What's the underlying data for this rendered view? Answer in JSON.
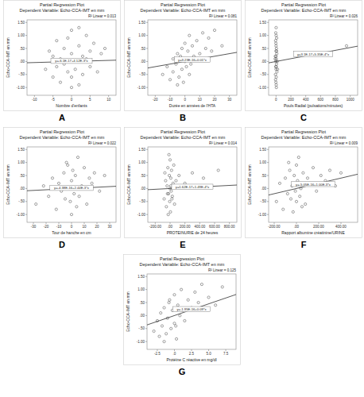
{
  "chart_data": [
    {
      "type": "scatter",
      "panel_label": "A",
      "title": "Partial Regression Plot",
      "subtitle": "Dependent Variable: Echo-CCA-IMT en mm",
      "x_label": "Nombre d'enfants",
      "y_label": "Echo-CCA-IMT en mm",
      "r2_label": "R² Linear = 0.013",
      "equation": "y=-6.1E-17+4.12E-3*x",
      "fit_line": {
        "intercept": 0,
        "slope": 0.00412
      },
      "color": "#444444",
      "marker": "circle-open",
      "grid": false,
      "x": [
        -7,
        -6,
        -5,
        -5,
        -4,
        -4,
        -3,
        -3,
        -2,
        -2,
        -1,
        -1,
        0,
        0,
        0,
        1,
        1,
        2,
        2,
        3,
        3,
        4,
        4,
        5,
        5,
        6,
        7,
        8,
        9,
        -3,
        2,
        0
      ],
      "y": [
        -0.3,
        0.4,
        -0.6,
        0.2,
        0.8,
        -0.2,
        0.1,
        -0.8,
        0.5,
        -0.1,
        0.9,
        -0.4,
        0.3,
        -0.6,
        1.2,
        0.0,
        -0.3,
        0.6,
        -0.9,
        0.2,
        -0.5,
        1.0,
        0.1,
        -0.2,
        0.4,
        0.7,
        -0.4,
        0.3,
        0.5,
        0.0,
        1.3,
        -1.0
      ],
      "xlim": [
        -12,
        12
      ],
      "xticks": [
        -10,
        -5,
        0,
        5,
        10
      ],
      "ylim": [
        -1.3,
        1.6
      ],
      "yticks": [
        {
          "value": -1,
          "label": "-1.00"
        },
        {
          "value": -0.5,
          "label": "-.50"
        },
        {
          "value": 0,
          "label": ".00"
        },
        {
          "value": 0.5,
          "label": ".50"
        },
        {
          "value": 1,
          "label": "1.00"
        },
        {
          "value": 1.5,
          "label": "1.50"
        }
      ]
    },
    {
      "type": "scatter",
      "panel_label": "B",
      "title": "Partial Regression Plot",
      "subtitle": "Dependent Variable: Echo-CCA-IMT en mm",
      "x_label": "Durée en années de l'HTA",
      "y_label": "Echo-CCA-IMT en mm",
      "r2_label": "R² Linear = 0.081",
      "equation": "y=3.23E-16+0.01*x",
      "fit_line": {
        "intercept": 0,
        "slope": 0.01
      },
      "color": "#444444",
      "marker": "circle-open",
      "grid": false,
      "x": [
        -15,
        -12,
        -10,
        -8,
        -8,
        -6,
        -5,
        -4,
        -3,
        -2,
        -2,
        -1,
        0,
        0,
        1,
        2,
        3,
        4,
        5,
        6,
        8,
        10,
        12,
        14,
        16,
        18,
        20,
        25,
        -5,
        3
      ],
      "y": [
        -0.5,
        -0.2,
        -0.7,
        0.1,
        -0.4,
        -0.1,
        0.3,
        -0.6,
        0.2,
        -0.3,
        0.5,
        -0.8,
        0.0,
        0.7,
        -0.2,
        0.4,
        1.0,
        -0.1,
        0.6,
        0.2,
        0.8,
        0.3,
        1.1,
        0.5,
        0.9,
        0.4,
        1.2,
        0.6,
        -0.9,
        -0.5
      ],
      "xlim": [
        -25,
        35
      ],
      "xticks": [
        -20,
        -10,
        0,
        10,
        20,
        30
      ],
      "ylim": [
        -1.3,
        1.6
      ],
      "yticks": [
        {
          "value": -1,
          "label": "-1.00"
        },
        {
          "value": -0.5,
          "label": "-.50"
        },
        {
          "value": 0,
          "label": ".00"
        },
        {
          "value": 0.5,
          "label": ".50"
        },
        {
          "value": 1,
          "label": "1.00"
        },
        {
          "value": 1.5,
          "label": "1.50"
        }
      ]
    },
    {
      "type": "scatter",
      "panel_label": "C",
      "title": "Partial Regression Plot",
      "subtitle": "Dependent Variable: Echo-CCA-IMT en mm",
      "x_label": "Pouls Radial (pulsations/minutes)",
      "y_label": "Echo-CCA-IMT en mm",
      "r2_label": "R² Linear = 0.026",
      "equation": "y=3.1E-17+5.35E-4*x",
      "fit_line": {
        "intercept": 0,
        "slope": 0.000535
      },
      "color": "#444444",
      "marker": "circle-open",
      "grid": false,
      "x": [
        -10,
        -8,
        -6,
        -5,
        -4,
        -3,
        -2,
        -1,
        0,
        0,
        1,
        2,
        3,
        4,
        5,
        6,
        8,
        10,
        12,
        -7,
        -2,
        0,
        3,
        7,
        15,
        20,
        -12,
        1,
        2,
        950
      ],
      "y": [
        0.2,
        -0.5,
        0.8,
        -0.2,
        1.1,
        0.0,
        -0.8,
        0.4,
        -0.3,
        0.6,
        1.3,
        -0.6,
        0.1,
        -1.0,
        0.5,
        -0.1,
        0.9,
        0.3,
        -0.4,
        -0.7,
        0.7,
        0.2,
        -0.2,
        0.4,
        0.0,
        -0.3,
        0.1,
        1.0,
        -0.9,
        0.6
      ],
      "xlim": [
        -100,
        1100
      ],
      "xticks": [
        0,
        200,
        400,
        600,
        800,
        1000
      ],
      "ylim": [
        -1.3,
        1.6
      ],
      "yticks": [
        {
          "value": -1,
          "label": "-1.00"
        },
        {
          "value": -0.5,
          "label": "-.50"
        },
        {
          "value": 0,
          "label": ".00"
        },
        {
          "value": 0.5,
          "label": ".50"
        },
        {
          "value": 1,
          "label": "1.00"
        },
        {
          "value": 1.5,
          "label": "1.50"
        }
      ]
    },
    {
      "type": "scatter",
      "panel_label": "D",
      "title": "Partial Regression Plot",
      "subtitle": "Dependent Variable: Echo-CCA-IMT en mm",
      "x_label": "Tour de hanche en cm",
      "y_label": "Echo-CCA-IMT en mm",
      "r2_label": "R² Linear = 0.022",
      "equation": "y=-4.38E-16+2.44E-3*x",
      "fit_line": {
        "intercept": 0,
        "slope": 0.00244
      },
      "color": "#444444",
      "marker": "circle-open",
      "grid": false,
      "x": [
        -28,
        -22,
        -18,
        -15,
        -12,
        -10,
        -8,
        -6,
        -5,
        -3,
        -2,
        -1,
        0,
        0,
        1,
        2,
        3,
        5,
        6,
        8,
        10,
        12,
        14,
        16,
        18,
        22,
        26,
        -4,
        4,
        -14
      ],
      "y": [
        -0.6,
        0.1,
        -0.3,
        0.4,
        -0.8,
        0.2,
        -0.1,
        0.6,
        -0.4,
        0.9,
        0.0,
        -0.5,
        0.3,
        -1.0,
        0.7,
        -0.2,
        0.5,
        1.2,
        -0.3,
        0.1,
        0.8,
        -0.6,
        0.4,
        0.2,
        0.6,
        -0.1,
        0.5,
        1.0,
        -0.7,
        0.0
      ],
      "xlim": [
        -35,
        35
      ],
      "xticks": [
        -30,
        -20,
        -10,
        0,
        10,
        20,
        30
      ],
      "ylim": [
        -1.3,
        1.6
      ],
      "yticks": [
        {
          "value": -1,
          "label": "-1.00"
        },
        {
          "value": -0.5,
          "label": "-.50"
        },
        {
          "value": 0,
          "label": ".00"
        },
        {
          "value": 0.5,
          "label": ".50"
        },
        {
          "value": 1,
          "label": "1.00"
        },
        {
          "value": 1.5,
          "label": "1.50"
        }
      ]
    },
    {
      "type": "scatter",
      "panel_label": "E",
      "title": "Partial Regression Plot",
      "subtitle": "Dependent Variable: Echo-CCA-IMT en mm",
      "x_label": "PROTEINURIE de 24 heures",
      "y_label": "Echo-CCA-IMT en mm",
      "r2_label": "R² Linear = 0.014",
      "equation": "y=1.62E-17+1.49E-4*x",
      "fit_line": {
        "intercept": 0,
        "slope": 0.000149
      },
      "color": "#444444",
      "marker": "circle-open",
      "grid": false,
      "x": [
        -80,
        -60,
        -50,
        -40,
        -30,
        -20,
        -10,
        -5,
        0,
        0,
        5,
        10,
        15,
        20,
        30,
        40,
        50,
        60,
        -70,
        -25,
        -15,
        10,
        25,
        80,
        120,
        200,
        300,
        450,
        650,
        -35
      ],
      "y": [
        -0.4,
        0.3,
        -0.7,
        0.1,
        0.8,
        -0.2,
        0.5,
        -0.5,
        0.0,
        1.1,
        -0.9,
        0.4,
        -0.1,
        0.7,
        -0.3,
        0.2,
        0.9,
        -0.6,
        0.6,
        -1.0,
        1.3,
        0.1,
        -0.4,
        0.3,
        0.5,
        0.2,
        0.6,
        0.4,
        0.7,
        -0.2
      ],
      "xlim": [
        -300,
        900
      ],
      "xticks": [
        {
          "value": -200,
          "label": "-200.00"
        },
        {
          "value": 0,
          "label": ".00"
        },
        {
          "value": 200,
          "label": "200.00"
        },
        {
          "value": 400,
          "label": "400.00"
        },
        {
          "value": 600,
          "label": "600.00"
        },
        {
          "value": 800,
          "label": "800.00"
        }
      ],
      "ylim": [
        -1.3,
        1.6
      ],
      "yticks": [
        {
          "value": -1,
          "label": "-1.00"
        },
        {
          "value": -0.5,
          "label": "-.50"
        },
        {
          "value": 0,
          "label": ".00"
        },
        {
          "value": 0.5,
          "label": ".50"
        },
        {
          "value": 1,
          "label": "1.00"
        },
        {
          "value": 1.5,
          "label": "1.50"
        }
      ]
    },
    {
      "type": "scatter",
      "panel_label": "F",
      "title": "Partial Regression Plot",
      "subtitle": "Dependent Variable: Echo-CCA-IMT en mm",
      "x_label": "Rapport albumine créatinine/URINE",
      "y_label": "Echo-CCA-IMT en mm",
      "r2_label": "R² Linear = 0.009",
      "equation": "y=-5.05E-16+1.00E-3*x",
      "fit_line": {
        "intercept": 0,
        "slope": 0.001
      },
      "color": "#444444",
      "marker": "circle-open",
      "grid": false,
      "x": [
        -180,
        -150,
        -120,
        -100,
        -80,
        -60,
        -50,
        -40,
        -30,
        -20,
        -10,
        0,
        0,
        10,
        20,
        30,
        40,
        60,
        80,
        100,
        120,
        150,
        180,
        220,
        260,
        300,
        350,
        400,
        -70,
        50
      ],
      "y": [
        -0.5,
        0.2,
        -0.8,
        0.4,
        -0.2,
        0.7,
        -0.4,
        0.1,
        -0.9,
        0.5,
        -0.1,
        0.9,
        -0.5,
        0.3,
        1.2,
        -0.3,
        0.0,
        0.6,
        -0.6,
        0.4,
        0.2,
        0.8,
        -0.1,
        0.5,
        0.3,
        0.7,
        0.1,
        0.6,
        1.0,
        -0.7
      ],
      "xlim": [
        -250,
        550
      ],
      "xticks": [
        {
          "value": -200,
          "label": "-200.00"
        },
        {
          "value": 0,
          "label": ".00"
        },
        {
          "value": 200,
          "label": "200.00"
        },
        {
          "value": 400,
          "label": "400.00"
        }
      ],
      "ylim": [
        -1.3,
        1.6
      ],
      "yticks": [
        {
          "value": -1,
          "label": "-1.00"
        },
        {
          "value": -0.5,
          "label": "-.50"
        },
        {
          "value": 0,
          "label": ".00"
        },
        {
          "value": 0.5,
          "label": ".50"
        },
        {
          "value": 1,
          "label": "1.00"
        },
        {
          "value": 1.5,
          "label": "1.50"
        }
      ]
    },
    {
      "type": "scatter",
      "panel_label": "G",
      "title": "Partial Regression Plot",
      "subtitle": "Dependent Variable: Echo-CCA-IMT en mm",
      "x_label": "Protéine C réactive en mg/dl",
      "y_label": "Echo-CCA-IMT en mm",
      "r2_label": "R² Linear = 0.125",
      "equation": "y=-1.95E-16+0.09*x",
      "fit_line": {
        "intercept": 0,
        "slope": 0.09
      },
      "color": "#444444",
      "marker": "circle-open",
      "grid": false,
      "x": [
        -3,
        -2.5,
        -2.2,
        -2,
        -1.8,
        -1.5,
        -1.2,
        -1,
        -0.8,
        -0.5,
        -0.3,
        0,
        0,
        0.3,
        0.5,
        0.8,
        1,
        1.5,
        2,
        2.5,
        3,
        3.5,
        4,
        5,
        6,
        7,
        -1.5,
        -0.7,
        0.2,
        1.2
      ],
      "y": [
        -0.6,
        -0.2,
        -0.8,
        0.1,
        -0.4,
        0.3,
        -0.7,
        -0.1,
        0.5,
        -0.5,
        0.2,
        -0.3,
        0.8,
        -0.9,
        0.4,
        0.0,
        1.0,
        -0.2,
        0.6,
        0.3,
        0.9,
        0.5,
        1.2,
        0.7,
        0.4,
        1.1,
        -1.0,
        0.6,
        -0.4,
        0.2
      ],
      "xlim": [
        -4,
        9
      ],
      "xticks": [
        {
          "value": -2.5,
          "label": "-2.5"
        },
        {
          "value": 0,
          "label": ".0"
        },
        {
          "value": 2.5,
          "label": "2.5"
        },
        {
          "value": 5,
          "label": "5.0"
        },
        {
          "value": 7.5,
          "label": "7.5"
        }
      ],
      "ylim": [
        -1.3,
        1.6
      ],
      "yticks": [
        {
          "value": -1,
          "label": "-1.00"
        },
        {
          "value": -0.5,
          "label": "-.50"
        },
        {
          "value": 0,
          "label": ".00"
        },
        {
          "value": 0.5,
          "label": ".50"
        },
        {
          "value": 1,
          "label": "1.00"
        },
        {
          "value": 1.5,
          "label": "1.50"
        }
      ]
    }
  ]
}
